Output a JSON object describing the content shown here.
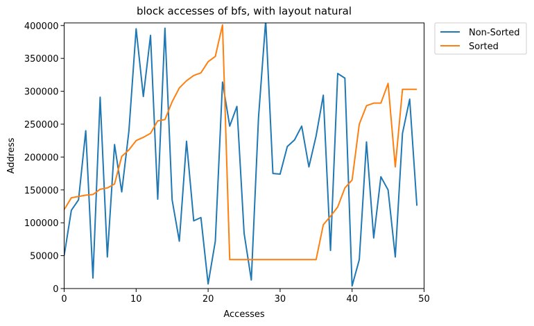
{
  "chart_data": {
    "type": "line",
    "title": "block accesses of bfs, with layout natural",
    "xlabel": "Accesses",
    "ylabel": "Address",
    "xlim": [
      0,
      50
    ],
    "ylim": [
      0,
      404000
    ],
    "xticks": [
      0,
      10,
      20,
      30,
      40,
      50
    ],
    "yticks": [
      0,
      50000,
      100000,
      150000,
      200000,
      250000,
      300000,
      350000,
      400000
    ],
    "grid": false,
    "legend_position": "outside-top-right",
    "series": [
      {
        "name": "Non-Sorted",
        "color": "#1f77b4",
        "x": [
          0,
          1,
          2,
          3,
          4,
          5,
          6,
          7,
          8,
          9,
          10,
          11,
          12,
          13,
          14,
          15,
          16,
          17,
          18,
          19,
          20,
          21,
          22,
          23,
          24,
          25,
          26,
          27,
          28,
          29,
          30,
          31,
          32,
          33,
          34,
          35,
          36,
          37,
          38,
          39,
          40,
          41,
          42,
          43,
          44,
          45,
          46,
          47,
          48,
          49
        ],
        "values": [
          50000,
          119000,
          135000,
          240000,
          16000,
          291000,
          48000,
          219000,
          147000,
          240000,
          395000,
          292000,
          385000,
          136000,
          396000,
          135000,
          72000,
          224000,
          103000,
          108000,
          7000,
          72000,
          314000,
          247000,
          277000,
          84000,
          13000,
          260000,
          408000,
          175000,
          174000,
          216000,
          226000,
          247000,
          185000,
          232000,
          294000,
          58000,
          327000,
          320000,
          4000,
          44000,
          223000,
          77000,
          170000,
          150000,
          48000,
          236000,
          288000,
          126000
        ]
      },
      {
        "name": "Sorted",
        "color": "#ff7f0e",
        "x": [
          0,
          1,
          2,
          3,
          4,
          5,
          6,
          7,
          8,
          9,
          10,
          11,
          12,
          13,
          14,
          15,
          16,
          17,
          18,
          19,
          20,
          21,
          22,
          23,
          24,
          25,
          26,
          27,
          28,
          29,
          30,
          31,
          32,
          33,
          34,
          35,
          36,
          37,
          38,
          39,
          40,
          41,
          42,
          43,
          44,
          45,
          46,
          47,
          48,
          49
        ],
        "values": [
          120000,
          138000,
          140000,
          142000,
          143000,
          151000,
          153000,
          159000,
          201000,
          211000,
          225000,
          230000,
          236000,
          255000,
          257000,
          284000,
          305000,
          316000,
          324000,
          328000,
          345000,
          353000,
          401000,
          44000,
          44000,
          44000,
          44000,
          44000,
          44000,
          44000,
          44000,
          44000,
          44000,
          44000,
          44000,
          44000,
          97000,
          110000,
          124000,
          153000,
          165000,
          250000,
          278000,
          282000,
          282000,
          312000,
          185000,
          303000,
          303000,
          303000
        ]
      }
    ]
  }
}
